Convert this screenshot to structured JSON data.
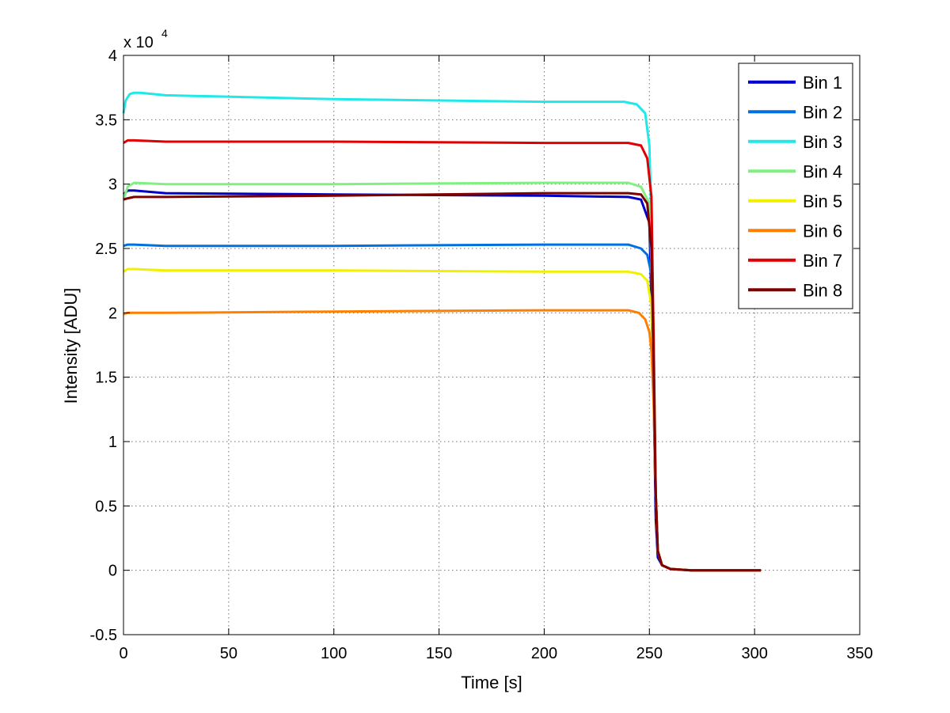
{
  "chart_data": {
    "type": "line",
    "xlabel": "Time [s]",
    "ylabel": "Intensity [ADU]",
    "y_exponent_base": "x 10",
    "y_exponent_power": "4",
    "xlim": [
      0,
      350
    ],
    "ylim": [
      -0.5,
      4
    ],
    "x_ticks": [
      "0",
      "50",
      "100",
      "150",
      "200",
      "250",
      "300",
      "350"
    ],
    "y_ticks": [
      "-0.5",
      "0",
      "0.5",
      "1",
      "1.5",
      "2",
      "2.5",
      "3",
      "3.5",
      "4"
    ],
    "grid": true,
    "legend_position": "top-right",
    "series": [
      {
        "name": "Bin 1",
        "color": "#0000C8",
        "x": [
          0,
          2,
          5,
          20,
          100,
          200,
          240,
          246,
          250,
          252,
          253,
          254,
          256,
          260,
          270,
          303
        ],
        "y": [
          2.92,
          2.95,
          2.95,
          2.93,
          2.92,
          2.91,
          2.9,
          2.88,
          2.7,
          1.4,
          0.4,
          0.1,
          0.04,
          0.01,
          0.0,
          0.0
        ]
      },
      {
        "name": "Bin 2",
        "color": "#0070E0",
        "x": [
          0,
          2,
          5,
          20,
          100,
          200,
          240,
          246,
          249,
          251,
          252,
          253,
          254,
          256,
          260,
          270,
          303
        ],
        "y": [
          2.52,
          2.53,
          2.53,
          2.52,
          2.52,
          2.53,
          2.53,
          2.5,
          2.45,
          2.3,
          1.5,
          0.6,
          0.15,
          0.04,
          0.01,
          0.0,
          0.0
        ]
      },
      {
        "name": "Bin 3",
        "color": "#20E8E8",
        "x": [
          0,
          1,
          3,
          5,
          8,
          20,
          100,
          200,
          238,
          244,
          248,
          250,
          251,
          252,
          253,
          254,
          256,
          260,
          270,
          303
        ],
        "y": [
          3.55,
          3.65,
          3.7,
          3.71,
          3.71,
          3.69,
          3.66,
          3.64,
          3.64,
          3.62,
          3.55,
          3.3,
          2.7,
          1.6,
          0.6,
          0.15,
          0.04,
          0.01,
          0.0,
          0.0
        ]
      },
      {
        "name": "Bin 4",
        "color": "#80F080",
        "x": [
          0,
          2,
          5,
          20,
          100,
          200,
          240,
          246,
          250,
          252,
          253,
          254,
          256,
          260,
          270,
          303
        ],
        "y": [
          2.88,
          2.98,
          3.01,
          3.0,
          3.0,
          3.01,
          3.01,
          2.98,
          2.85,
          1.9,
          0.6,
          0.15,
          0.04,
          0.01,
          0.0,
          0.0
        ]
      },
      {
        "name": "Bin 5",
        "color": "#F0F000",
        "x": [
          0,
          2,
          5,
          20,
          100,
          200,
          240,
          246,
          249,
          251,
          252,
          253,
          254,
          256,
          260,
          270,
          303
        ],
        "y": [
          2.32,
          2.34,
          2.34,
          2.33,
          2.33,
          2.32,
          2.32,
          2.3,
          2.25,
          2.05,
          1.5,
          0.6,
          0.15,
          0.04,
          0.01,
          0.0,
          0.0
        ]
      },
      {
        "name": "Bin 6",
        "color": "#FF8000",
        "x": [
          0,
          2,
          5,
          20,
          100,
          200,
          240,
          245,
          248,
          250,
          251,
          252,
          253,
          254,
          256,
          260,
          270,
          303
        ],
        "y": [
          1.99,
          2.0,
          2.0,
          2.0,
          2.01,
          2.02,
          2.02,
          2.0,
          1.95,
          1.85,
          1.7,
          1.3,
          0.6,
          0.15,
          0.04,
          0.01,
          0.0,
          0.0
        ]
      },
      {
        "name": "Bin 7",
        "color": "#E00000",
        "x": [
          0,
          2,
          5,
          20,
          100,
          200,
          240,
          246,
          249,
          251,
          252,
          253,
          254,
          256,
          260,
          270,
          303
        ],
        "y": [
          3.32,
          3.34,
          3.34,
          3.33,
          3.33,
          3.32,
          3.32,
          3.3,
          3.2,
          2.9,
          1.8,
          0.6,
          0.15,
          0.04,
          0.01,
          0.0,
          0.0
        ]
      },
      {
        "name": "Bin 8",
        "color": "#800000",
        "x": [
          0,
          2,
          5,
          20,
          100,
          200,
          240,
          246,
          249,
          251,
          252,
          253,
          254,
          256,
          260,
          270,
          303
        ],
        "y": [
          2.88,
          2.89,
          2.9,
          2.9,
          2.91,
          2.93,
          2.93,
          2.92,
          2.85,
          2.5,
          1.6,
          0.6,
          0.15,
          0.04,
          0.01,
          0.0,
          0.0
        ]
      }
    ]
  }
}
